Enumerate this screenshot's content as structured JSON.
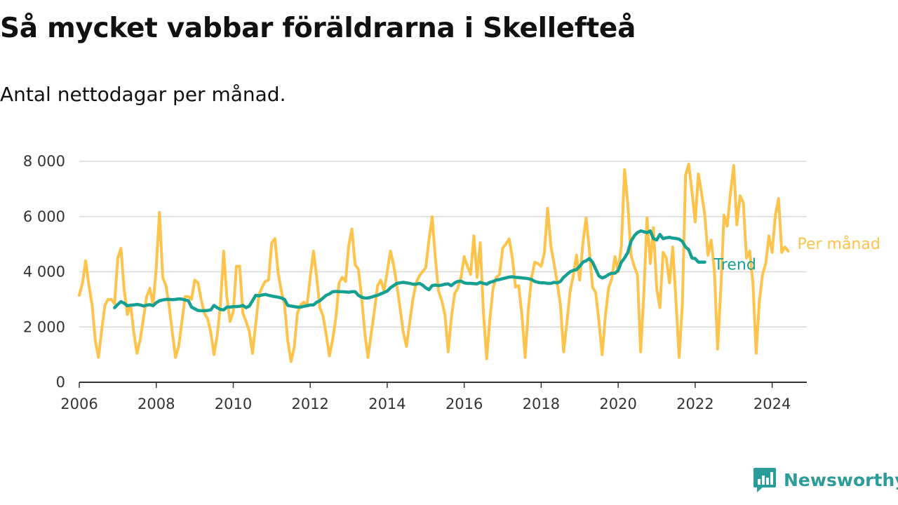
{
  "title": "Så mycket vabbar föräldrarna i Skellefteå",
  "subtitle": "Antal nettodagar per månad.",
  "brand": {
    "name": "Newsworthy",
    "color": "#2a9d9b",
    "icon": "newsworthy-logo-icon"
  },
  "chart_data": {
    "type": "line",
    "title": "Så mycket vabbar föräldrarna i Skellefteå",
    "subtitle": "Antal nettodagar per månad.",
    "xlabel": "",
    "ylabel": "",
    "xlim": [
      2006,
      2024.9
    ],
    "ylim": [
      0,
      8000
    ],
    "yticks": [
      0,
      2000,
      4000,
      6000,
      8000
    ],
    "ytick_labels": [
      "0",
      "2 000",
      "4 000",
      "6 000",
      "8 000"
    ],
    "xticks": [
      2006,
      2008,
      2010,
      2012,
      2014,
      2016,
      2018,
      2020,
      2022,
      2024
    ],
    "xtick_labels": [
      "2006",
      "2008",
      "2010",
      "2012",
      "2014",
      "2016",
      "2018",
      "2020",
      "2022",
      "2024"
    ],
    "grid": "horizontal",
    "legend": "inline-right",
    "series": [
      {
        "name": "Per månad",
        "color": "#fdc34b",
        "x_start": 2006.0,
        "step": 0.0833333,
        "values": [
          3150,
          3600,
          4400,
          3500,
          2800,
          1500,
          900,
          1900,
          2800,
          3000,
          3000,
          2850,
          4500,
          4850,
          3350,
          2450,
          2800,
          1800,
          1050,
          1550,
          2300,
          3100,
          3400,
          2800,
          4150,
          6150,
          3800,
          3500,
          2800,
          1800,
          900,
          1300,
          2200,
          3100,
          3100,
          3000,
          3700,
          3600,
          3000,
          2500,
          2300,
          1800,
          1000,
          1700,
          2800,
          4750,
          3100,
          2200,
          2550,
          4200,
          4200,
          2500,
          2200,
          1850,
          1050,
          2100,
          3150,
          3450,
          3650,
          3700,
          5050,
          5200,
          3950,
          3300,
          2800,
          1500,
          750,
          1250,
          2500,
          2800,
          2900,
          2800,
          3800,
          4750,
          3800,
          2700,
          2400,
          1700,
          950,
          1550,
          2350,
          3600,
          3800,
          3650,
          4950,
          5550,
          4250,
          4100,
          3100,
          1800,
          900,
          1750,
          2600,
          3500,
          3700,
          3300,
          4000,
          4750,
          4250,
          3500,
          2700,
          1800,
          1300,
          2150,
          3000,
          3600,
          3850,
          4000,
          4150,
          5150,
          6000,
          4500,
          3300,
          2950,
          2450,
          1100,
          2350,
          3200,
          3400,
          3800,
          4550,
          4200,
          3900,
          5300,
          3800,
          5050,
          2500,
          850,
          2300,
          3400,
          3800,
          3900,
          4850,
          5000,
          5200,
          4500,
          3450,
          3500,
          2400,
          900,
          2650,
          3800,
          4350,
          4300,
          4200,
          4700,
          6300,
          4950,
          4300,
          3600,
          2800,
          1100,
          2150,
          3300,
          3850,
          4600,
          3700,
          5050,
          5950,
          4800,
          3450,
          3250,
          2200,
          1000,
          2400,
          3400,
          3750,
          4550,
          4000,
          4950,
          7700,
          6450,
          4600,
          4200,
          3900,
          1100,
          3200,
          5950,
          4300,
          5600,
          3400,
          2700,
          4700,
          4500,
          3600,
          4900,
          3000,
          900,
          2800,
          7500,
          7900,
          6900,
          5800,
          7550,
          6850,
          6050,
          4600,
          5150,
          4050,
          1200,
          3400,
          6050,
          5650,
          6850,
          7850,
          5700,
          6750,
          6500,
          4500,
          4750,
          3600,
          1050,
          2900,
          3900,
          4300,
          5300,
          4700,
          6050,
          6650,
          4700,
          4900,
          4750
        ]
      },
      {
        "name": "Trend",
        "color": "#16a092",
        "x_start": 2006.9167,
        "step": 0.0833333,
        "values": [
          2700,
          2820,
          2920,
          2860,
          2770,
          2790,
          2800,
          2820,
          2800,
          2760,
          2790,
          2810,
          2770,
          2880,
          2950,
          2980,
          3000,
          3000,
          2990,
          3000,
          3020,
          3010,
          2980,
          2950,
          2720,
          2660,
          2600,
          2590,
          2590,
          2600,
          2620,
          2780,
          2700,
          2640,
          2620,
          2720,
          2720,
          2740,
          2740,
          2750,
          2780,
          2700,
          2760,
          2950,
          3150,
          3130,
          3160,
          3180,
          3150,
          3120,
          3100,
          3080,
          3050,
          3000,
          2780,
          2760,
          2740,
          2720,
          2720,
          2750,
          2770,
          2800,
          2800,
          2900,
          2950,
          3050,
          3150,
          3200,
          3280,
          3290,
          3280,
          3280,
          3270,
          3260,
          3280,
          3280,
          3150,
          3080,
          3050,
          3050,
          3080,
          3120,
          3150,
          3200,
          3250,
          3300,
          3420,
          3500,
          3580,
          3600,
          3620,
          3600,
          3580,
          3550,
          3550,
          3580,
          3520,
          3420,
          3350,
          3500,
          3520,
          3500,
          3520,
          3550,
          3560,
          3500,
          3600,
          3650,
          3660,
          3600,
          3580,
          3580,
          3570,
          3560,
          3620,
          3580,
          3550,
          3620,
          3650,
          3700,
          3720,
          3750,
          3780,
          3810,
          3820,
          3800,
          3790,
          3780,
          3770,
          3750,
          3720,
          3650,
          3620,
          3600,
          3600,
          3580,
          3580,
          3620,
          3600,
          3650,
          3800,
          3900,
          4000,
          4050,
          4080,
          4200,
          4350,
          4400,
          4480,
          4350,
          4100,
          3850,
          3780,
          3820,
          3900,
          3950,
          3950,
          4050,
          4350,
          4500,
          4700,
          5100,
          5300,
          5420,
          5480,
          5450,
          5420,
          5480,
          5200,
          5150,
          5350,
          5200,
          5230,
          5250,
          5220,
          5210,
          5180,
          5100,
          4900,
          4800,
          4500,
          4480,
          4350,
          4350,
          4350
        ]
      }
    ]
  }
}
